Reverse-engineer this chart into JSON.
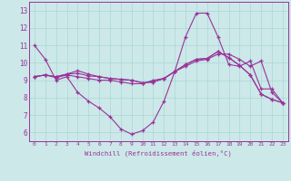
{
  "xlabel": "Windchill (Refroidissement éolien,°C)",
  "xlim": [
    -0.5,
    23.5
  ],
  "ylim": [
    5.5,
    13.5
  ],
  "xticks": [
    0,
    1,
    2,
    3,
    4,
    5,
    6,
    7,
    8,
    9,
    10,
    11,
    12,
    13,
    14,
    15,
    16,
    17,
    18,
    19,
    20,
    21,
    22,
    23
  ],
  "yticks": [
    6,
    7,
    8,
    9,
    10,
    11,
    12,
    13
  ],
  "background_color": "#cce8e8",
  "line_color": "#993399",
  "series": [
    [
      11.0,
      10.2,
      9.0,
      9.2,
      8.3,
      7.8,
      7.4,
      6.9,
      6.2,
      5.9,
      6.1,
      6.6,
      7.8,
      9.5,
      11.5,
      12.85,
      12.85,
      11.5,
      9.9,
      9.8,
      10.1,
      8.5,
      8.5,
      7.7
    ],
    [
      9.2,
      9.3,
      9.15,
      9.3,
      9.2,
      9.1,
      9.0,
      9.0,
      8.9,
      8.8,
      8.8,
      9.0,
      9.1,
      9.5,
      9.8,
      10.1,
      10.2,
      10.5,
      10.5,
      10.2,
      9.8,
      10.1,
      8.3,
      7.7
    ],
    [
      9.2,
      9.3,
      9.2,
      9.35,
      9.4,
      9.25,
      9.2,
      9.1,
      9.05,
      9.0,
      8.85,
      8.9,
      9.1,
      9.5,
      9.9,
      10.2,
      10.25,
      10.65,
      10.3,
      9.85,
      9.3,
      8.2,
      7.9,
      7.7
    ],
    [
      9.2,
      9.3,
      9.2,
      9.35,
      9.55,
      9.35,
      9.2,
      9.1,
      9.05,
      9.0,
      8.85,
      8.9,
      9.1,
      9.5,
      9.9,
      10.2,
      10.25,
      10.65,
      10.3,
      9.85,
      9.3,
      8.2,
      7.9,
      7.7
    ]
  ]
}
